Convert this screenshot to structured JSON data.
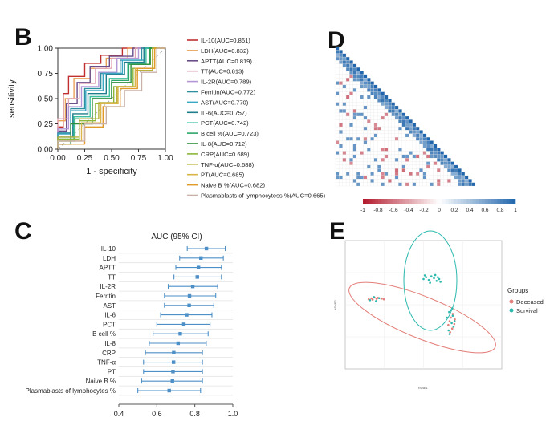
{
  "panels": {
    "B": "B",
    "C": "C",
    "D": "D",
    "E": "E"
  },
  "colors": {
    "ci": "#4d8fc7",
    "deceased": "#e37f79",
    "survival": "#2cb9ae",
    "neg": "#b2182b",
    "mid": "#ffffff",
    "pos": "#2166ac"
  },
  "chart_data": [
    {
      "id": "roc",
      "type": "line",
      "xlabel": "1 - specificity",
      "ylabel": "sensitivity",
      "xlim": [
        0,
        1
      ],
      "ylim": [
        0,
        1
      ],
      "xticks": [
        "0.00",
        "0.25",
        "0.50",
        "0.75",
        "1.00"
      ],
      "yticks": [
        "0.00",
        "0.25",
        "0.50",
        "0.75",
        "1.00"
      ],
      "legend": "right",
      "series": [
        {
          "name": "IL-10(AUC=0.861)",
          "color": "#c0302e",
          "x": [
            0,
            0,
            0.05,
            0.05,
            0.1,
            0.1,
            0.25,
            0.25,
            0.4,
            0.4,
            0.6,
            0.6,
            0.85,
            1
          ],
          "y": [
            0,
            0.22,
            0.22,
            0.55,
            0.55,
            0.72,
            0.72,
            0.85,
            0.85,
            0.93,
            0.93,
            1,
            1,
            1
          ]
        },
        {
          "name": "LDH(AUC=0.832)",
          "color": "#e9a25a",
          "x": [
            0,
            0,
            0.07,
            0.07,
            0.15,
            0.15,
            0.3,
            0.3,
            0.45,
            0.45,
            0.65,
            0.65,
            1
          ],
          "y": [
            0,
            0.28,
            0.28,
            0.5,
            0.5,
            0.7,
            0.7,
            0.8,
            0.8,
            0.9,
            0.9,
            1,
            1
          ]
        },
        {
          "name": "APTT(AUC=0.819)",
          "color": "#6a4e8a",
          "x": [
            0,
            0,
            0.08,
            0.08,
            0.18,
            0.18,
            0.3,
            0.3,
            0.48,
            0.48,
            0.7,
            0.7,
            1
          ],
          "y": [
            0,
            0.18,
            0.18,
            0.45,
            0.45,
            0.66,
            0.66,
            0.82,
            0.82,
            0.92,
            0.92,
            1,
            1
          ]
        },
        {
          "name": "TT(AUC=0.813)",
          "color": "#e0a6b8",
          "x": [
            0,
            0,
            0.1,
            0.1,
            0.2,
            0.2,
            0.35,
            0.35,
            0.5,
            0.5,
            0.72,
            0.72,
            1
          ],
          "y": [
            0,
            0.3,
            0.3,
            0.5,
            0.5,
            0.65,
            0.65,
            0.8,
            0.8,
            0.9,
            0.9,
            1,
            1
          ]
        },
        {
          "name": "IL-2R(AUC=0.789)",
          "color": "#b497d6",
          "x": [
            0,
            0,
            0.1,
            0.1,
            0.22,
            0.22,
            0.38,
            0.38,
            0.55,
            0.55,
            0.75,
            0.75,
            1
          ],
          "y": [
            0,
            0.2,
            0.2,
            0.42,
            0.42,
            0.62,
            0.62,
            0.76,
            0.76,
            0.9,
            0.9,
            1,
            1
          ]
        },
        {
          "name": "Ferritin(AUC=0.772)",
          "color": "#2e8fa0",
          "x": [
            0,
            0,
            0.12,
            0.12,
            0.25,
            0.25,
            0.4,
            0.4,
            0.58,
            0.58,
            0.78,
            0.78,
            1
          ],
          "y": [
            0,
            0.16,
            0.16,
            0.4,
            0.4,
            0.6,
            0.6,
            0.75,
            0.75,
            0.88,
            0.88,
            1,
            1
          ]
        },
        {
          "name": "AST(AUC=0.770)",
          "color": "#3aa8c4",
          "x": [
            0,
            0,
            0.12,
            0.12,
            0.26,
            0.26,
            0.42,
            0.42,
            0.6,
            0.6,
            0.8,
            0.8,
            1
          ],
          "y": [
            0,
            0.15,
            0.15,
            0.38,
            0.38,
            0.58,
            0.58,
            0.75,
            0.75,
            0.88,
            0.88,
            1,
            1
          ]
        },
        {
          "name": "IL-6(AUC=0.757)",
          "color": "#1f7e8c",
          "x": [
            0,
            0,
            0.14,
            0.14,
            0.28,
            0.28,
            0.45,
            0.45,
            0.62,
            0.62,
            0.8,
            0.8,
            1
          ],
          "y": [
            0,
            0.12,
            0.12,
            0.35,
            0.35,
            0.55,
            0.55,
            0.74,
            0.74,
            0.86,
            0.86,
            1,
            1
          ]
        },
        {
          "name": "PCT(AUC=0.742)",
          "color": "#3cc0a0",
          "x": [
            0,
            0,
            0.15,
            0.15,
            0.3,
            0.3,
            0.48,
            0.48,
            0.65,
            0.65,
            0.82,
            0.82,
            1
          ],
          "y": [
            0,
            0.1,
            0.1,
            0.32,
            0.32,
            0.52,
            0.52,
            0.7,
            0.7,
            0.85,
            0.85,
            1,
            1
          ]
        },
        {
          "name": "B cell %(AUC=0.723)",
          "color": "#2ea56a",
          "x": [
            0,
            0,
            0.16,
            0.16,
            0.32,
            0.32,
            0.5,
            0.5,
            0.66,
            0.66,
            0.85,
            0.85,
            1
          ],
          "y": [
            0,
            0.08,
            0.08,
            0.3,
            0.3,
            0.5,
            0.5,
            0.68,
            0.68,
            0.84,
            0.84,
            1,
            1
          ]
        },
        {
          "name": "IL-8(AUC=0.712)",
          "color": "#2f8f3a",
          "x": [
            0,
            0,
            0.12,
            0.12,
            0.32,
            0.32,
            0.5,
            0.5,
            0.68,
            0.68,
            0.86,
            0.86,
            1
          ],
          "y": [
            0,
            0.05,
            0.05,
            0.25,
            0.25,
            0.5,
            0.5,
            0.66,
            0.66,
            0.84,
            0.84,
            1,
            1
          ]
        },
        {
          "name": "CRP(AUC=0.689)",
          "color": "#8cb83a",
          "x": [
            0,
            0,
            0.2,
            0.2,
            0.35,
            0.35,
            0.52,
            0.52,
            0.7,
            0.7,
            0.88,
            0.88,
            1
          ],
          "y": [
            0,
            0.1,
            0.1,
            0.28,
            0.28,
            0.45,
            0.45,
            0.62,
            0.62,
            0.8,
            0.8,
            1,
            1
          ]
        },
        {
          "name": "TNF-α(AUC=0.688)",
          "color": "#b8b23a",
          "x": [
            0,
            0,
            0.2,
            0.2,
            0.38,
            0.38,
            0.55,
            0.55,
            0.72,
            0.72,
            0.88,
            0.88,
            1
          ],
          "y": [
            0,
            0.12,
            0.12,
            0.3,
            0.3,
            0.46,
            0.46,
            0.62,
            0.62,
            0.78,
            0.78,
            1,
            1
          ]
        },
        {
          "name": "PT(AUC=0.685)",
          "color": "#d9b54a",
          "x": [
            0,
            0,
            0.22,
            0.22,
            0.4,
            0.4,
            0.56,
            0.56,
            0.72,
            0.72,
            0.9,
            0.9,
            1
          ],
          "y": [
            0,
            0.08,
            0.08,
            0.26,
            0.26,
            0.45,
            0.45,
            0.62,
            0.62,
            0.8,
            0.8,
            1,
            1
          ]
        },
        {
          "name": "Naive B %(AUC=0.682)",
          "color": "#e09a2a",
          "x": [
            0,
            0,
            0.25,
            0.25,
            0.42,
            0.42,
            0.58,
            0.58,
            0.74,
            0.74,
            0.9,
            0.9,
            1
          ],
          "y": [
            0,
            0.05,
            0.05,
            0.22,
            0.22,
            0.42,
            0.42,
            0.6,
            0.6,
            0.8,
            0.8,
            1,
            1
          ]
        },
        {
          "name": "Plasmablasts of lymphocytess %(AUC=0.665)",
          "color": "#c9b1a8",
          "x": [
            0,
            0,
            0.25,
            0.25,
            0.45,
            0.45,
            0.62,
            0.62,
            0.78,
            0.78,
            0.92,
            0.92,
            1
          ],
          "y": [
            0,
            0.08,
            0.08,
            0.25,
            0.25,
            0.42,
            0.42,
            0.58,
            0.58,
            0.76,
            0.76,
            1,
            1
          ]
        }
      ]
    },
    {
      "id": "forest",
      "type": "scatter",
      "title": "AUC (95% CI)",
      "xlim": [
        0.4,
        1.0
      ],
      "xticks": [
        "0.4",
        "0.6",
        "0.8",
        "1.0"
      ],
      "categories": [
        "IL-10",
        "LDH",
        "APTT",
        "TT",
        "IL-2R",
        "Ferritin",
        "AST",
        "IL-6",
        "PCT",
        "B cell %",
        "IL-8",
        "CRP",
        "TNF-α",
        "PT",
        "Naive B %",
        "Plasmablasts of lymphocytes %"
      ],
      "auc": [
        0.861,
        0.832,
        0.819,
        0.813,
        0.789,
        0.772,
        0.77,
        0.757,
        0.742,
        0.723,
        0.712,
        0.689,
        0.688,
        0.685,
        0.682,
        0.665
      ],
      "lower": [
        0.76,
        0.72,
        0.7,
        0.69,
        0.66,
        0.64,
        0.64,
        0.62,
        0.6,
        0.58,
        0.56,
        0.54,
        0.53,
        0.53,
        0.52,
        0.5
      ],
      "upper": [
        0.96,
        0.95,
        0.94,
        0.94,
        0.92,
        0.91,
        0.9,
        0.89,
        0.88,
        0.87,
        0.86,
        0.84,
        0.84,
        0.84,
        0.84,
        0.83
      ]
    },
    {
      "id": "corr",
      "type": "heatmap",
      "colorbar_ticks": [
        "-1",
        "-0.8",
        "-0.6",
        "-0.4",
        "-0.2",
        "0",
        "0.2",
        "0.4",
        "0.6",
        "0.8",
        "1"
      ],
      "colorbar_range": [
        -1,
        1
      ]
    },
    {
      "id": "tsne",
      "type": "scatter",
      "xlabel": "tSNE1",
      "ylabel": "tSNE2",
      "legend_title": "Groups",
      "legend": "right",
      "xlim": [
        -300,
        300
      ],
      "ylim": [
        -300,
        400
      ],
      "series": [
        {
          "name": "Deceased",
          "color": "#e37f79",
          "x": [
            -210,
            -200,
            -195,
            -188,
            -180,
            -175,
            -160,
            -152,
            95,
            100,
            105,
            110,
            112,
            118,
            120,
            102
          ],
          "y": [
            80,
            85,
            78,
            90,
            82,
            88,
            84,
            80,
            -60,
            -40,
            -20,
            -80,
            0,
            -55,
            -30,
            -100
          ]
        },
        {
          "name": "Survival",
          "color": "#2cb9ae",
          "x": [
            -205,
            -190,
            -182,
            -170,
            0,
            10,
            20,
            30,
            40,
            50,
            55,
            60,
            65,
            5,
            25,
            45,
            90,
            98,
            108,
            115,
            96,
            104,
            112,
            119,
            100,
            110
          ],
          "y": [
            75,
            92,
            70,
            86,
            190,
            200,
            185,
            205,
            195,
            180,
            200,
            190,
            175,
            210,
            170,
            212,
            -20,
            10,
            -50,
            -70,
            -90,
            20,
            -10,
            -40,
            -110,
            30
          ]
        }
      ]
    }
  ]
}
